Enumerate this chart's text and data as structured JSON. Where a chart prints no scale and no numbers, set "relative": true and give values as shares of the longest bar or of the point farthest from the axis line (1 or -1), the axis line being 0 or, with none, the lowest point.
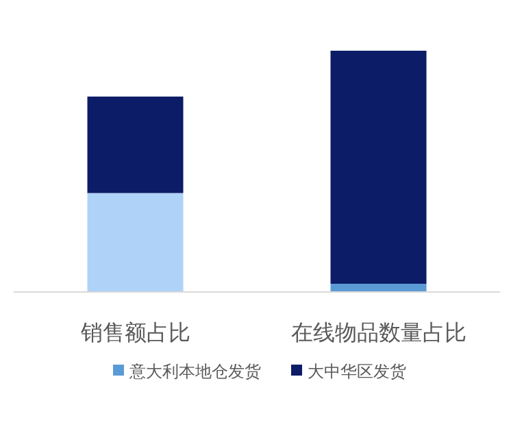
{
  "chart_data": {
    "type": "bar",
    "stacked": true,
    "relative": true,
    "legend": "bottom",
    "categories": [
      "销售额占比",
      "在线物品数量占比"
    ],
    "series": [
      {
        "name": "意大利本地仓发货",
        "color": "#5b9bd5",
        "colors": [
          "#aed2f8",
          "#5b9bd5"
        ],
        "values": [
          0.41,
          0.034
        ]
      },
      {
        "name": "大中华区发货",
        "color": "#0c1c67",
        "values": [
          0.4,
          0.966
        ]
      }
    ]
  }
}
